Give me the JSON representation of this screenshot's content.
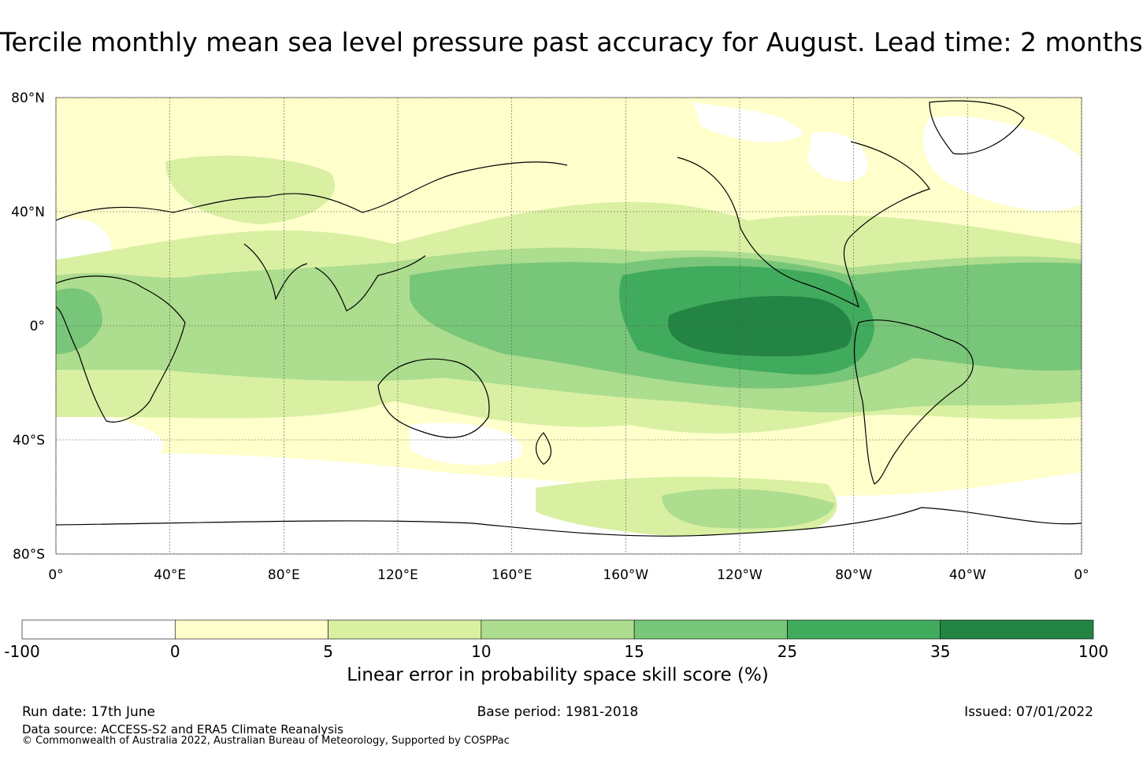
{
  "title": "Tercile monthly mean sea level pressure past accuracy for August. Lead time: 2 months",
  "map": {
    "lat_labels": [
      "80°N",
      "40°N",
      "0°",
      "40°S",
      "80°S"
    ],
    "lon_labels": [
      "0°",
      "40°E",
      "80°E",
      "120°E",
      "160°E",
      "160°W",
      "120°W",
      "80°W",
      "40°W",
      "0°"
    ],
    "lat_values": [
      80,
      40,
      0,
      -40,
      -80
    ],
    "lon_values": [
      0,
      40,
      80,
      120,
      160,
      200,
      240,
      280,
      320,
      360
    ]
  },
  "colorbar": {
    "ticks": [
      "-100",
      "0",
      "5",
      "10",
      "15",
      "25",
      "35",
      "100"
    ],
    "colors": [
      "#ffffff",
      "#ffffcc",
      "#d9f0a3",
      "#addd8e",
      "#78c679",
      "#41ab5d",
      "#238443"
    ],
    "label": "Linear error in probability space skill score (%)"
  },
  "footer": {
    "run_date": "Run date: 17th June",
    "base_period": "Base period: 1981-2018",
    "issued": "Issued: 07/01/2022",
    "data_source": "Data source: ACCESS-S2 and ERA5 Climate Reanalysis",
    "copyright": "© Commonwealth of Australia 2022, Australian Bureau of Meteorology, Supported by COSPPac"
  }
}
